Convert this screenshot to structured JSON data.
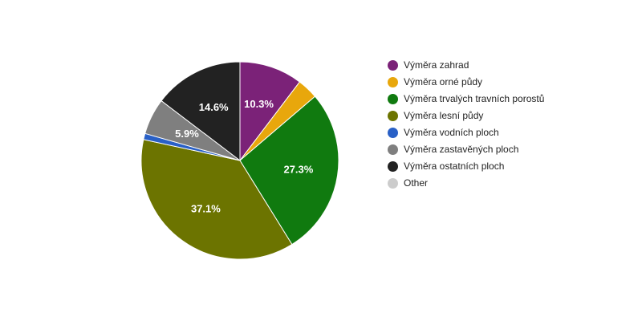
{
  "chart_data": {
    "type": "pie",
    "title": "",
    "slices": [
      {
        "label": "Výměra zahrad",
        "value": 10.3,
        "color": "#7b2278",
        "value_label": "10.3%"
      },
      {
        "label": "Výměra orné půdy",
        "value": 3.4,
        "color": "#e8a70c",
        "value_label": ""
      },
      {
        "label": "Výměra trvalých travních porostů",
        "value": 27.3,
        "color": "#107a0f",
        "value_label": "27.3%"
      },
      {
        "label": "Výměra lesní půdy",
        "value": 37.1,
        "color": "#6c7400",
        "value_label": "37.1%"
      },
      {
        "label": "Výměra vodních ploch",
        "value": 1.0,
        "color": "#2960c6",
        "value_label": ""
      },
      {
        "label": "Výměra zastavěných ploch",
        "value": 5.9,
        "color": "#7f7f7f",
        "value_label": "5.9%"
      },
      {
        "label": "Výměra ostatních ploch",
        "value": 14.6,
        "color": "#222222",
        "value_label": "14.6%"
      },
      {
        "label": "Other",
        "value": 0,
        "color": "#cccccc",
        "value_label": ""
      }
    ],
    "legend_position": "right"
  }
}
